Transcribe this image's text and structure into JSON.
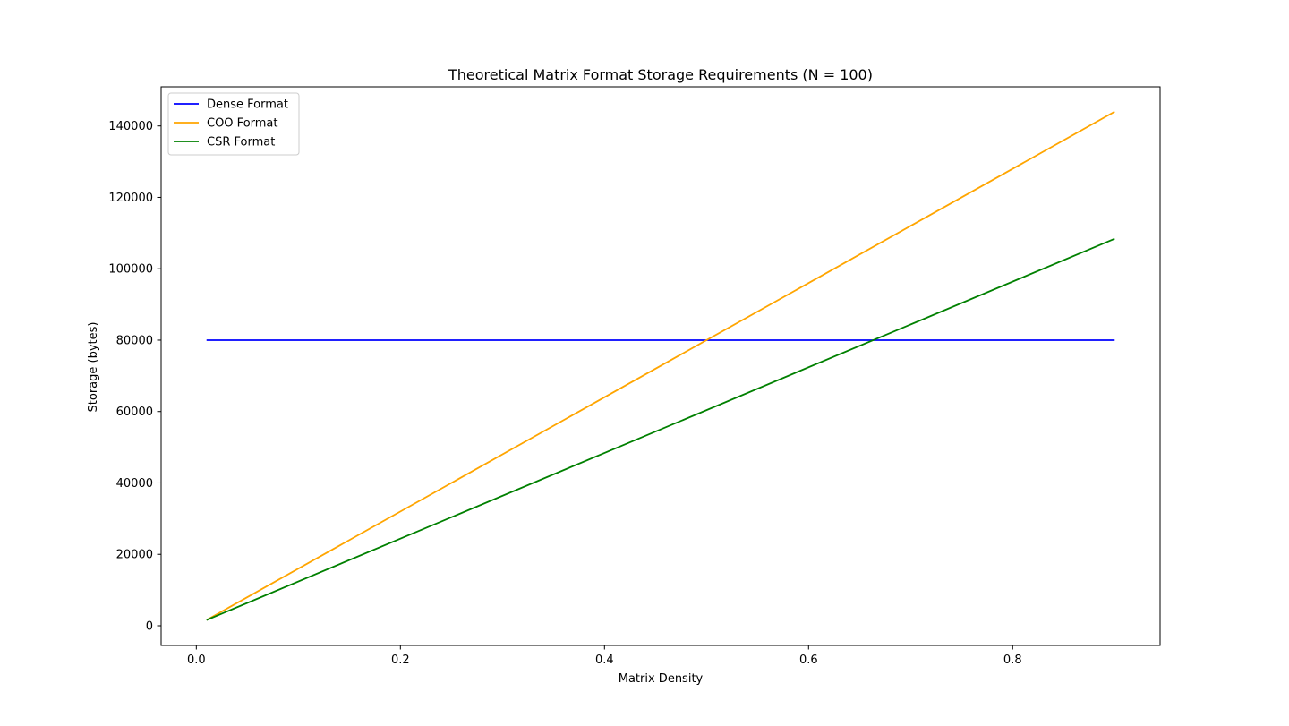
{
  "chart_data": {
    "type": "line",
    "title": "Theoretical Matrix Format Storage Requirements (N = 100)",
    "xlabel": "Matrix Density",
    "ylabel": "Storage (bytes)",
    "xlim": [
      -0.0345,
      0.9445
    ],
    "ylim": [
      -5520,
      150960
    ],
    "xticks": [
      0.0,
      0.2,
      0.4,
      0.6,
      0.8
    ],
    "xtick_labels": [
      "0.0",
      "0.2",
      "0.4",
      "0.6",
      "0.8"
    ],
    "yticks": [
      0,
      20000,
      40000,
      60000,
      80000,
      100000,
      120000,
      140000
    ],
    "ytick_labels": [
      "0",
      "20000",
      "40000",
      "60000",
      "80000",
      "100000",
      "120000",
      "140000"
    ],
    "grid": false,
    "legend_position": "upper-left",
    "series": [
      {
        "name": "Dense Format",
        "color": "#0000ff",
        "x": [
          0.01,
          0.9
        ],
        "y": [
          80000,
          80000
        ]
      },
      {
        "name": "COO Format",
        "color": "#ffa500",
        "x": [
          0.01,
          0.9
        ],
        "y": [
          1600,
          144000
        ]
      },
      {
        "name": "CSR Format",
        "color": "#008000",
        "x": [
          0.01,
          0.9
        ],
        "y": [
          1600,
          108400
        ]
      }
    ]
  }
}
